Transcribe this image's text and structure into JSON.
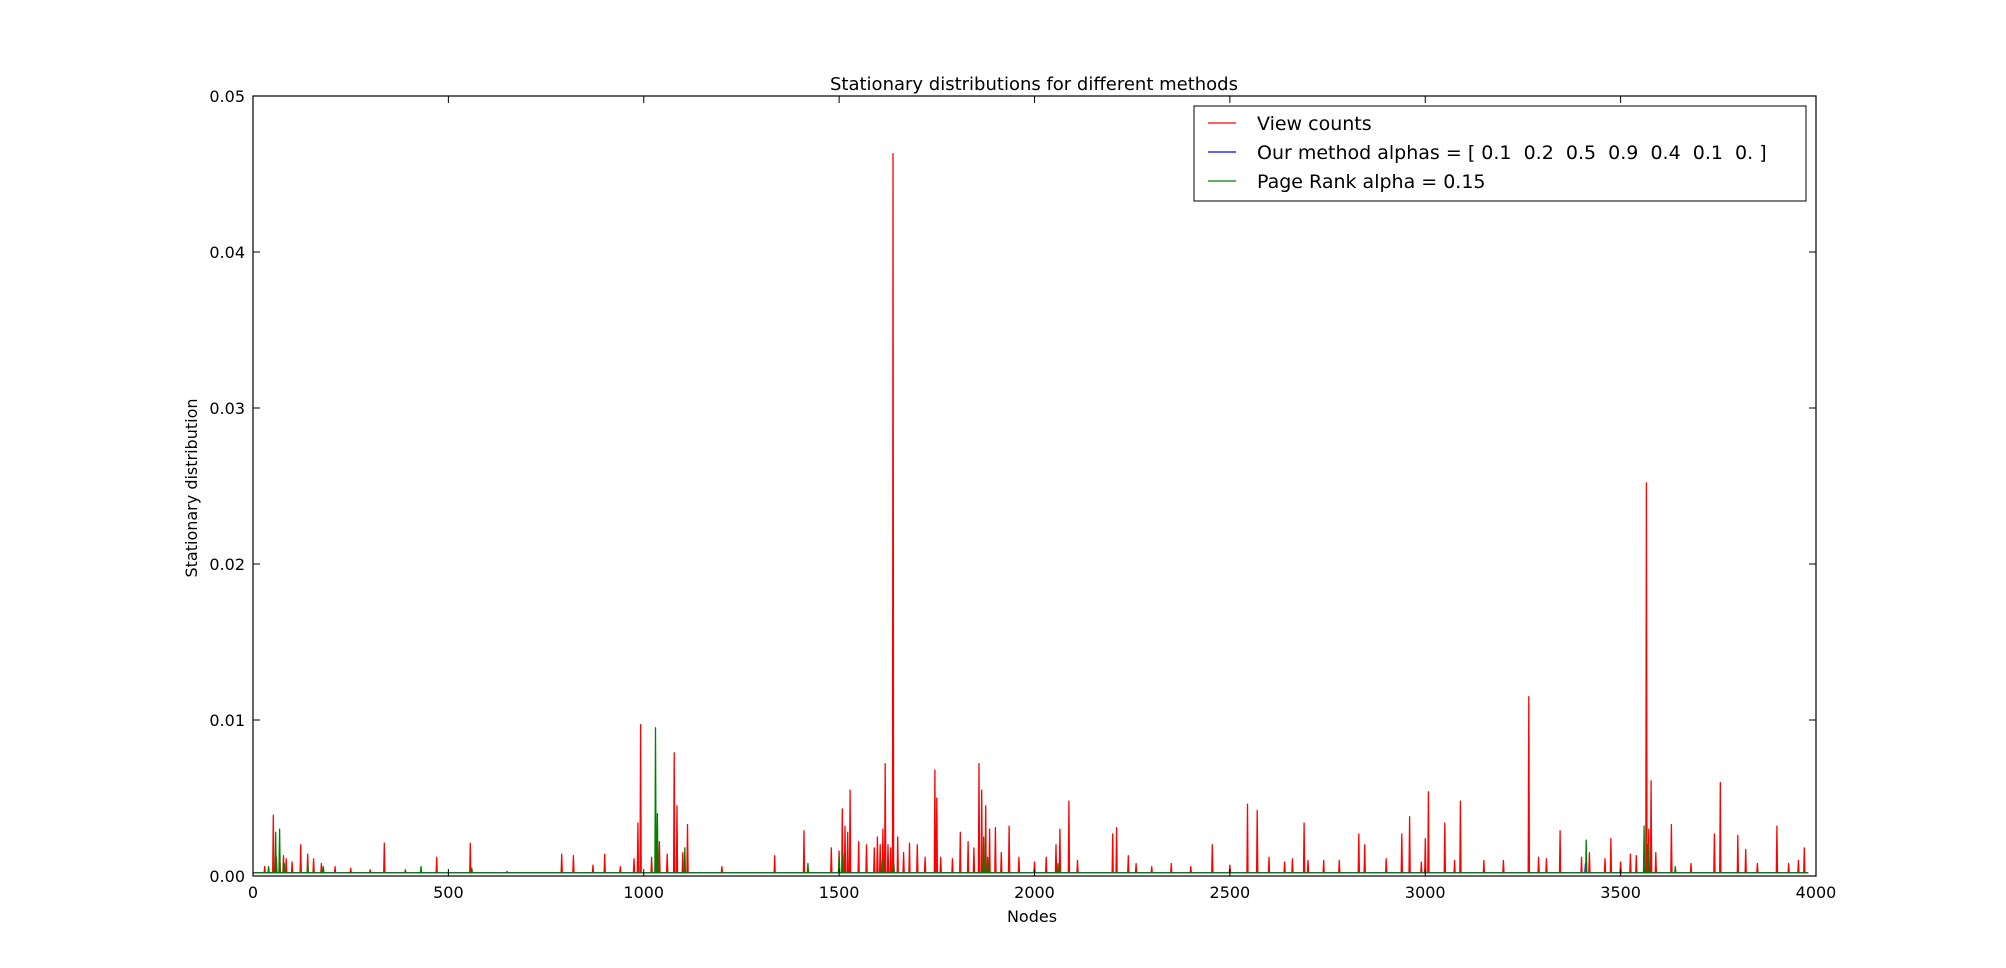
{
  "chart_data": {
    "type": "line",
    "title": "Stationary distributions for different methods",
    "xlabel": "Nodes",
    "ylabel": "Stationary distribution",
    "xlim": [
      0,
      4000
    ],
    "ylim": [
      0,
      0.05
    ],
    "x_ticks": [
      "0",
      "500",
      "1000",
      "1500",
      "2000",
      "2500",
      "3000",
      "3500",
      "4000"
    ],
    "y_ticks": [
      "0.00",
      "0.01",
      "0.02",
      "0.03",
      "0.04",
      "0.05"
    ],
    "grid": false,
    "legend_position": "top-right",
    "baseline_level": 0.0002,
    "series": [
      {
        "name": "View counts",
        "color": "#ff0000",
        "spikes": [
          [
            30,
            0.0006
          ],
          [
            52,
            0.0039
          ],
          [
            60,
            0.0012
          ],
          [
            68,
            0.0018
          ],
          [
            78,
            0.0013
          ],
          [
            85,
            0.0011
          ],
          [
            100,
            0.0009
          ],
          [
            122,
            0.002
          ],
          [
            140,
            0.0014
          ],
          [
            155,
            0.0011
          ],
          [
            175,
            0.0008
          ],
          [
            210,
            0.0006
          ],
          [
            250,
            0.0005
          ],
          [
            300,
            0.0004
          ],
          [
            336,
            0.0021
          ],
          [
            390,
            0.0004
          ],
          [
            470,
            0.0012
          ],
          [
            556,
            0.0021
          ],
          [
            650,
            0.0003
          ],
          [
            790,
            0.0014
          ],
          [
            820,
            0.0013
          ],
          [
            870,
            0.0007
          ],
          [
            900,
            0.0014
          ],
          [
            940,
            0.0006
          ],
          [
            975,
            0.0011
          ],
          [
            985,
            0.0034
          ],
          [
            992,
            0.0097
          ],
          [
            1020,
            0.0012
          ],
          [
            1040,
            0.0022
          ],
          [
            1060,
            0.0014
          ],
          [
            1078,
            0.0079
          ],
          [
            1085,
            0.0045
          ],
          [
            1100,
            0.0015
          ],
          [
            1112,
            0.0033
          ],
          [
            1200,
            0.0006
          ],
          [
            1335,
            0.0013
          ],
          [
            1410,
            0.0029
          ],
          [
            1480,
            0.0018
          ],
          [
            1500,
            0.0016
          ],
          [
            1508,
            0.0043
          ],
          [
            1515,
            0.0032
          ],
          [
            1522,
            0.0028
          ],
          [
            1528,
            0.0055
          ],
          [
            1550,
            0.0022
          ],
          [
            1570,
            0.002
          ],
          [
            1590,
            0.0018
          ],
          [
            1598,
            0.0025
          ],
          [
            1605,
            0.002
          ],
          [
            1612,
            0.003
          ],
          [
            1618,
            0.0072
          ],
          [
            1625,
            0.002
          ],
          [
            1632,
            0.0018
          ],
          [
            1638,
            0.0463
          ],
          [
            1650,
            0.0025
          ],
          [
            1665,
            0.0015
          ],
          [
            1680,
            0.0021
          ],
          [
            1700,
            0.002
          ],
          [
            1720,
            0.0012
          ],
          [
            1745,
            0.0068
          ],
          [
            1750,
            0.005
          ],
          [
            1760,
            0.0012
          ],
          [
            1790,
            0.0011
          ],
          [
            1810,
            0.0028
          ],
          [
            1830,
            0.0022
          ],
          [
            1845,
            0.0018
          ],
          [
            1858,
            0.0072
          ],
          [
            1865,
            0.0055
          ],
          [
            1875,
            0.0045
          ],
          [
            1885,
            0.003
          ],
          [
            1900,
            0.0031
          ],
          [
            1915,
            0.0015
          ],
          [
            1935,
            0.0032
          ],
          [
            1960,
            0.0012
          ],
          [
            2000,
            0.0009
          ],
          [
            2030,
            0.0012
          ],
          [
            2055,
            0.002
          ],
          [
            2065,
            0.003
          ],
          [
            2088,
            0.0048
          ],
          [
            2110,
            0.001
          ],
          [
            2200,
            0.0027
          ],
          [
            2210,
            0.0031
          ],
          [
            2240,
            0.0013
          ],
          [
            2260,
            0.0008
          ],
          [
            2300,
            0.0006
          ],
          [
            2350,
            0.0008
          ],
          [
            2400,
            0.0006
          ],
          [
            2455,
            0.002
          ],
          [
            2500,
            0.0007
          ],
          [
            2545,
            0.0046
          ],
          [
            2570,
            0.0042
          ],
          [
            2600,
            0.0012
          ],
          [
            2640,
            0.0009
          ],
          [
            2660,
            0.0011
          ],
          [
            2690,
            0.0034
          ],
          [
            2700,
            0.001
          ],
          [
            2740,
            0.001
          ],
          [
            2780,
            0.001
          ],
          [
            2830,
            0.0027
          ],
          [
            2845,
            0.002
          ],
          [
            2900,
            0.0011
          ],
          [
            2940,
            0.0027
          ],
          [
            2960,
            0.0038
          ],
          [
            2990,
            0.0009
          ],
          [
            3000,
            0.0024
          ],
          [
            3008,
            0.0054
          ],
          [
            3050,
            0.0034
          ],
          [
            3075,
            0.001
          ],
          [
            3090,
            0.0048
          ],
          [
            3150,
            0.001
          ],
          [
            3200,
            0.001
          ],
          [
            3265,
            0.0115
          ],
          [
            3290,
            0.0012
          ],
          [
            3310,
            0.0011
          ],
          [
            3345,
            0.0029
          ],
          [
            3400,
            0.0012
          ],
          [
            3420,
            0.0015
          ],
          [
            3460,
            0.0011
          ],
          [
            3475,
            0.0024
          ],
          [
            3500,
            0.0009
          ],
          [
            3525,
            0.0014
          ],
          [
            3540,
            0.0013
          ],
          [
            3566,
            0.0252
          ],
          [
            3572,
            0.003
          ],
          [
            3578,
            0.0061
          ],
          [
            3590,
            0.0015
          ],
          [
            3630,
            0.0033
          ],
          [
            3680,
            0.0008
          ],
          [
            3740,
            0.0027
          ],
          [
            3755,
            0.006
          ],
          [
            3800,
            0.0026
          ],
          [
            3820,
            0.0017
          ],
          [
            3850,
            0.0008
          ],
          [
            3900,
            0.0032
          ],
          [
            3930,
            0.0008
          ],
          [
            3955,
            0.001
          ],
          [
            3970,
            0.0018
          ]
        ]
      },
      {
        "name": "Our method alphas = [ 0.1  0.2  0.5  0.9  0.4  0.1  0. ]",
        "color": "#0000ff",
        "spikes": [
          [
            68,
            0.0008
          ],
          [
            1030,
            0.001
          ],
          [
            1610,
            0.0006
          ],
          [
            3410,
            0.0008
          ],
          [
            3560,
            0.001
          ]
        ]
      },
      {
        "name": "Page Rank alpha = 0.15",
        "color": "#008000",
        "spikes": [
          [
            40,
            0.0006
          ],
          [
            58,
            0.0028
          ],
          [
            68,
            0.003
          ],
          [
            80,
            0.0008
          ],
          [
            140,
            0.0008
          ],
          [
            180,
            0.0006
          ],
          [
            430,
            0.0006
          ],
          [
            560,
            0.0005
          ],
          [
            1030,
            0.0095
          ],
          [
            1035,
            0.004
          ],
          [
            1105,
            0.0018
          ],
          [
            1420,
            0.0008
          ],
          [
            1500,
            0.0012
          ],
          [
            1510,
            0.0015
          ],
          [
            1610,
            0.001
          ],
          [
            1640,
            0.0008
          ],
          [
            1870,
            0.0025
          ],
          [
            1880,
            0.0012
          ],
          [
            2060,
            0.0008
          ],
          [
            3412,
            0.0023
          ],
          [
            3560,
            0.0032
          ],
          [
            3570,
            0.002
          ],
          [
            3640,
            0.0006
          ]
        ]
      }
    ]
  }
}
